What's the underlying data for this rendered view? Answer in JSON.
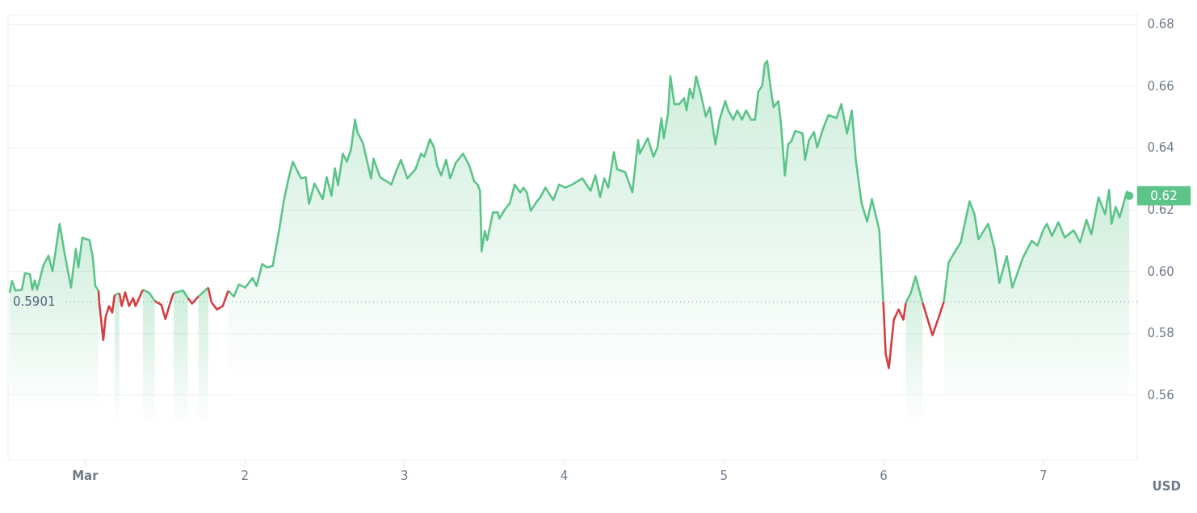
{
  "chart_data": {
    "type": "area",
    "ylabel": "USD",
    "series": [
      {
        "type": "area",
        "color": "#5cc489",
        "x": [
          0.53,
          0.545,
          0.566,
          0.606,
          0.626,
          0.657,
          0.672,
          0.687,
          0.702,
          0.742,
          0.773,
          0.798,
          0.818,
          0.843,
          0.869,
          0.914,
          0.944,
          0.96,
          0.985,
          1.03,
          1.051,
          1.066,
          1.086
        ],
        "values": [
          0.5931,
          0.5968,
          0.5937,
          0.594,
          0.5994,
          0.599,
          0.594,
          0.597,
          0.594,
          0.602,
          0.605,
          0.6,
          0.6067,
          0.6153,
          0.6072,
          0.5947,
          0.6072,
          0.6012,
          0.6108,
          0.61,
          0.6043,
          0.5952,
          0.5937
        ]
      },
      {
        "type": "area",
        "color": "#5cc489",
        "x": [
          1.187,
          1.217
        ],
        "values": [
          0.5923,
          0.5929
        ]
      },
      {
        "type": "area",
        "color": "#5cc489",
        "x": [
          1.364,
          1.404,
          1.439
        ],
        "values": [
          0.594,
          0.593,
          0.5903
        ]
      },
      {
        "type": "area",
        "color": "#5cc489",
        "x": [
          1.556,
          1.616,
          1.646
        ],
        "values": [
          0.5929,
          0.5937,
          0.5913
        ]
      },
      {
        "type": "area",
        "color": "#5cc489",
        "x": [
          1.712,
          1.773
        ],
        "values": [
          0.5918,
          0.5947
        ]
      },
      {
        "type": "area",
        "color": "#5cc489",
        "x": [
          1.899,
          1.934,
          1.965,
          2.005,
          2.051,
          2.076,
          2.111,
          2.141,
          2.177,
          2.217,
          2.247,
          2.278,
          2.303,
          2.354,
          2.384,
          2.404,
          2.439,
          2.49,
          2.515,
          2.545,
          2.566,
          2.586,
          2.616,
          2.641,
          2.667,
          2.692,
          2.707,
          2.742,
          2.793,
          2.808,
          2.849,
          2.879,
          2.894,
          2.919,
          2.955,
          2.98,
          3.02,
          3.071,
          3.106,
          3.126,
          3.162,
          3.187,
          3.207,
          3.232,
          3.263,
          3.288,
          3.323,
          3.369,
          3.409,
          3.439,
          3.46,
          3.475,
          3.485,
          3.505,
          3.52,
          3.556,
          3.586,
          3.596,
          3.631,
          3.662,
          3.692,
          3.727,
          3.747,
          3.768,
          3.793,
          3.823,
          3.854,
          3.884,
          3.934,
          3.97,
          4.01,
          4.051,
          4.116,
          4.167,
          4.197,
          4.227,
          4.253,
          4.278,
          4.313,
          4.333,
          4.384,
          4.429,
          4.465,
          4.475,
          4.525,
          4.561,
          4.586,
          4.611,
          4.626,
          4.652,
          4.667,
          4.692,
          4.722,
          4.753,
          4.768,
          4.788,
          4.808,
          4.828,
          4.854,
          4.889,
          4.914,
          4.949,
          4.975,
          5.01,
          5.03,
          5.061,
          5.086,
          5.116,
          5.141,
          5.172,
          5.197,
          5.217,
          5.242,
          5.258,
          5.273,
          5.298,
          5.313,
          5.343,
          5.359,
          5.384,
          5.404,
          5.424,
          5.449,
          5.495,
          5.51,
          5.535,
          5.566,
          5.586,
          5.621,
          5.657,
          5.707,
          5.737,
          5.773,
          5.803,
          5.828,
          5.864,
          5.899,
          5.929,
          5.975,
          6.0
        ],
        "values": [
          0.5937,
          0.5918,
          0.5957,
          0.5947,
          0.5978,
          0.5952,
          0.6023,
          0.6012,
          0.6017,
          0.6132,
          0.6229,
          0.6304,
          0.6354,
          0.63,
          0.6304,
          0.6218,
          0.6283,
          0.6233,
          0.6304,
          0.6244,
          0.6333,
          0.6278,
          0.638,
          0.6354,
          0.6393,
          0.649,
          0.645,
          0.6414,
          0.63,
          0.6364,
          0.6304,
          0.6294,
          0.629,
          0.628,
          0.633,
          0.636,
          0.63,
          0.633,
          0.638,
          0.637,
          0.6427,
          0.64,
          0.634,
          0.631,
          0.636,
          0.63,
          0.635,
          0.638,
          0.634,
          0.629,
          0.628,
          0.626,
          0.6064,
          0.613,
          0.61,
          0.619,
          0.619,
          0.617,
          0.62,
          0.622,
          0.628,
          0.6255,
          0.627,
          0.6255,
          0.6195,
          0.622,
          0.624,
          0.627,
          0.623,
          0.628,
          0.627,
          0.628,
          0.63,
          0.626,
          0.631,
          0.624,
          0.63,
          0.627,
          0.6385,
          0.633,
          0.632,
          0.6255,
          0.6424,
          0.638,
          0.643,
          0.637,
          0.64,
          0.6495,
          0.643,
          0.651,
          0.663,
          0.654,
          0.654,
          0.656,
          0.652,
          0.659,
          0.656,
          0.663,
          0.658,
          0.65,
          0.653,
          0.641,
          0.649,
          0.655,
          0.652,
          0.649,
          0.652,
          0.649,
          0.652,
          0.649,
          0.649,
          0.658,
          0.66,
          0.667,
          0.668,
          0.658,
          0.653,
          0.655,
          0.648,
          0.631,
          0.641,
          0.642,
          0.6454,
          0.6445,
          0.636,
          0.6424,
          0.645,
          0.64,
          0.6458,
          0.6505,
          0.6495,
          0.654,
          0.6445,
          0.652,
          0.636,
          0.622,
          0.616,
          0.6233,
          0.6132,
          0.5901
        ]
      },
      {
        "type": "area",
        "color": "#5cc489",
        "x": [
          6.141,
          6.172,
          6.202,
          6.247
        ],
        "values": [
          0.5897,
          0.5929,
          0.5983,
          0.5897
        ]
      },
      {
        "type": "area",
        "color": "#5cc489",
        "x": [
          6.379,
          6.409,
          6.444,
          6.485,
          6.54,
          6.571,
          6.596,
          6.631,
          6.657,
          6.697,
          6.727,
          6.773,
          6.808,
          6.874,
          6.929,
          6.965,
          7.005,
          7.025,
          7.056,
          7.096,
          7.136,
          7.192,
          7.232,
          7.272,
          7.303,
          7.348,
          7.389,
          7.414,
          7.429,
          7.455,
          7.48,
          7.525,
          7.54
        ],
        "values": [
          0.5901,
          0.6028,
          0.6059,
          0.6093,
          0.6226,
          0.6184,
          0.6103,
          0.6132,
          0.6153,
          0.6072,
          0.5962,
          0.6049,
          0.5947,
          0.6043,
          0.6098,
          0.6083,
          0.6137,
          0.6153,
          0.6114,
          0.6158,
          0.6109,
          0.6132,
          0.6093,
          0.6166,
          0.6119,
          0.6239,
          0.6184,
          0.6263,
          0.6153,
          0.6208,
          0.6174,
          0.6257,
          0.6244
        ]
      },
      {
        "type": "line",
        "color": "#d63c3f",
        "x": [
          1.086,
          1.091,
          1.116,
          1.131,
          1.152,
          1.172,
          1.187
        ],
        "values": [
          0.5937,
          0.5897,
          0.5777,
          0.5852,
          0.5887,
          0.5866,
          0.5923
        ]
      },
      {
        "type": "line",
        "color": "#d63c3f",
        "x": [
          1.217,
          1.232,
          1.253,
          1.278,
          1.303,
          1.318,
          1.364
        ],
        "values": [
          0.5929,
          0.5887,
          0.5931,
          0.5887,
          0.5913,
          0.5887,
          0.594
        ]
      },
      {
        "type": "line",
        "color": "#d63c3f",
        "x": [
          1.439,
          1.48,
          1.505,
          1.535,
          1.556
        ],
        "values": [
          0.5903,
          0.5891,
          0.5845,
          0.5897,
          0.5929
        ]
      },
      {
        "type": "line",
        "color": "#d63c3f",
        "x": [
          1.646,
          1.672,
          1.712
        ],
        "values": [
          0.5913,
          0.5895,
          0.5918
        ]
      },
      {
        "type": "line",
        "color": "#d63c3f",
        "x": [
          1.773,
          1.793,
          1.828,
          1.864,
          1.899
        ],
        "values": [
          0.5947,
          0.59,
          0.5876,
          0.5887,
          0.5937
        ]
      },
      {
        "type": "line",
        "color": "#d63c3f",
        "x": [
          6.0,
          6.015,
          6.035,
          6.066,
          6.096,
          6.126,
          6.141
        ],
        "values": [
          0.5901,
          0.5733,
          0.5686,
          0.5843,
          0.5876,
          0.5843,
          0.5897
        ]
      },
      {
        "type": "line",
        "color": "#d63c3f",
        "x": [
          6.247,
          6.308,
          6.348,
          6.379
        ],
        "values": [
          0.5897,
          0.5793,
          0.5852,
          0.5901
        ]
      }
    ],
    "xlim": [
      0.52,
      7.59
    ],
    "xticks": [
      {
        "value": 1,
        "label": "Mar"
      },
      2,
      3,
      4,
      5,
      6,
      7
    ],
    "ylim": [
      0.539,
      0.683
    ],
    "yticks": [
      0.56,
      0.58,
      {
        "value": 0.6,
        "label": "0.60"
      },
      0.62,
      0.64,
      0.66,
      0.68
    ],
    "grid": "y",
    "ref_lines": [
      {
        "axis": "y",
        "value": 0.5901,
        "label": "0.5901",
        "line_style": "dotted",
        "color": "#8a8f99"
      }
    ],
    "annotations": [
      {
        "text": "0.62",
        "x": 7.54,
        "y": 0.6244
      }
    ]
  }
}
